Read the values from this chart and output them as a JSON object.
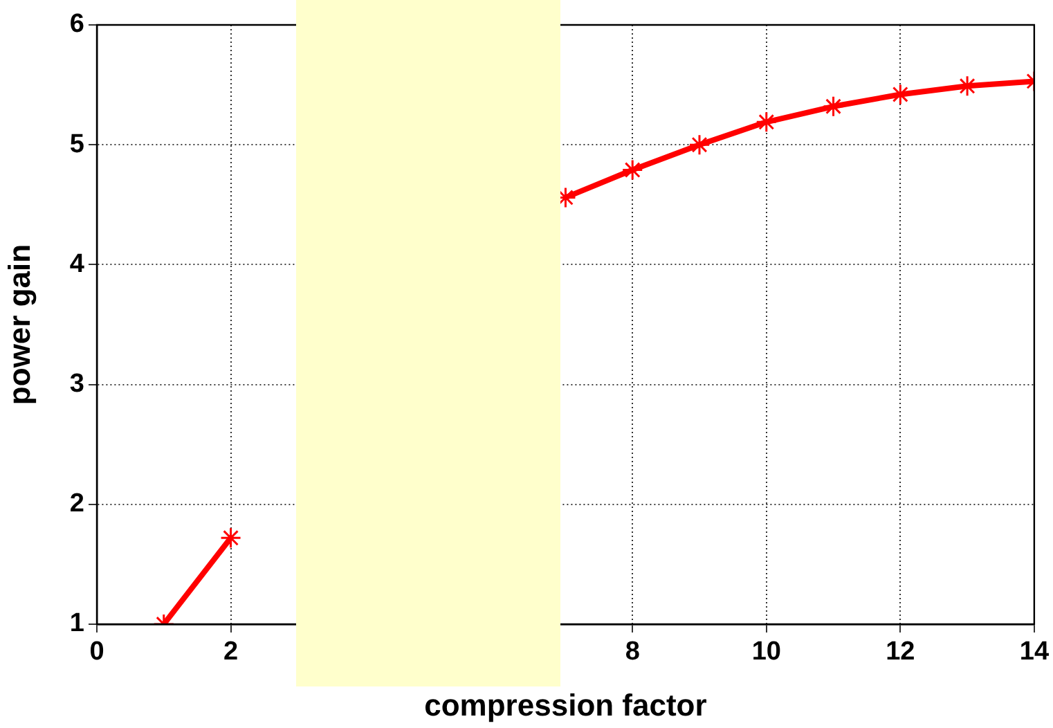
{
  "chart_data": {
    "type": "line",
    "xlabel": "compression factor",
    "ylabel": "power gain",
    "x": [
      1,
      2,
      3,
      4,
      5,
      6,
      7,
      8,
      9,
      10,
      11,
      12,
      13,
      14
    ],
    "series": [
      {
        "color": "#ff0000",
        "values": [
          1.0,
          1.72,
          null,
          null,
          null,
          null,
          4.56,
          4.79,
          5.0,
          5.19,
          5.32,
          5.42,
          5.49,
          5.53
        ]
      }
    ],
    "xlim": [
      0,
      14
    ],
    "xticks": [
      0,
      2,
      8,
      10,
      12,
      14
    ],
    "ylim": [
      1,
      6
    ],
    "yticks": [
      1,
      2,
      3,
      4,
      5,
      6
    ],
    "grid": true,
    "marker": "cross",
    "line_style": "solid"
  }
}
